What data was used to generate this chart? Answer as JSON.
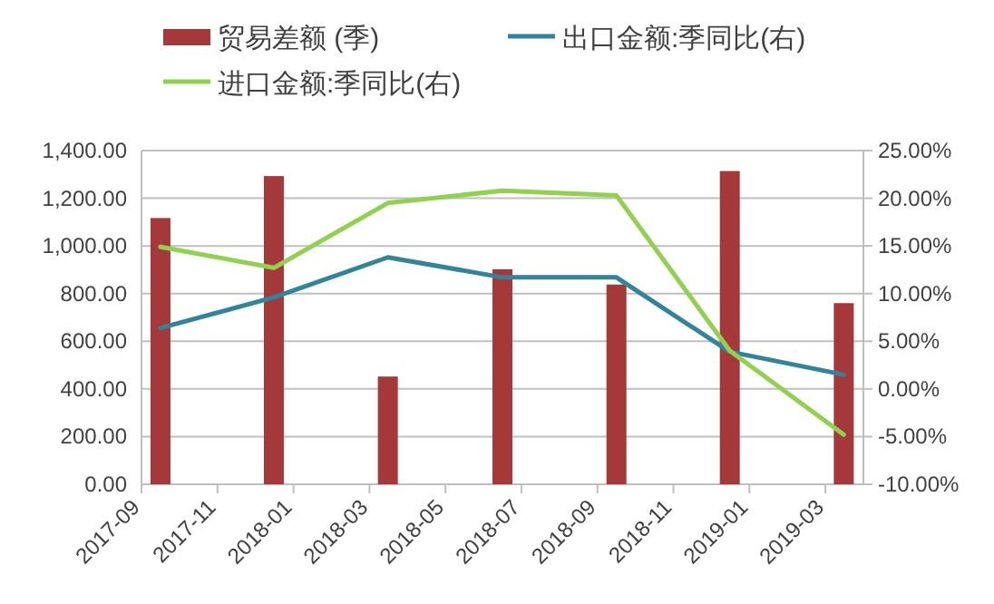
{
  "chart_data": {
    "type": "bar",
    "x": [
      "2017-09-16",
      "2017-12-16",
      "2018-03-16",
      "2018-06-16",
      "2018-09-16",
      "2018-12-16",
      "2019-03-16"
    ],
    "series": [
      {
        "name": "贸易差额 (季)",
        "color": "#a5393a",
        "values": [
          1117,
          1293,
          452,
          902,
          838,
          1314,
          760
        ]
      },
      {
        "name": "出口金额:季同比(右)",
        "type": "line",
        "axis": "y2",
        "color": "#31849b",
        "values": [
          6.4,
          9.6,
          13.8,
          11.7,
          11.7,
          3.9,
          1.5
        ]
      },
      {
        "name": "进口金额:季同比(右)",
        "type": "line",
        "axis": "y2",
        "color": "#92d050",
        "values": [
          14.9,
          12.7,
          19.5,
          20.8,
          20.3,
          4.0,
          -4.8
        ]
      }
    ],
    "xlim": [
      "2017-09-01",
      "2019-04-01"
    ],
    "xticks": [
      {
        "value": "2017-09-01",
        "label": "2017-09"
      },
      {
        "value": "2017-11-01",
        "label": "2017-11"
      },
      {
        "value": "2018-01-01",
        "label": "2018-01"
      },
      {
        "value": "2018-03-01",
        "label": "2018-03"
      },
      {
        "value": "2018-05-01",
        "label": "2018-05"
      },
      {
        "value": "2018-07-01",
        "label": "2018-07"
      },
      {
        "value": "2018-09-01",
        "label": "2018-09"
      },
      {
        "value": "2018-11-01",
        "label": "2018-11"
      },
      {
        "value": "2019-01-01",
        "label": "2019-01"
      },
      {
        "value": "2019-03-01",
        "label": "2019-03"
      }
    ],
    "ylim": [
      0,
      1400
    ],
    "yticks": [
      {
        "value": 0,
        "label": "0.00"
      },
      {
        "value": 200,
        "label": "200.00"
      },
      {
        "value": 400,
        "label": "400.00"
      },
      {
        "value": 600,
        "label": "600.00"
      },
      {
        "value": 800,
        "label": "800.00"
      },
      {
        "value": 1000,
        "label": "1,000.00"
      },
      {
        "value": 1200,
        "label": "1,200.00"
      },
      {
        "value": 1400,
        "label": "1,400.00"
      }
    ],
    "y2lim": [
      -10,
      25
    ],
    "y2ticks": [
      {
        "value": -10,
        "label": "-10.00%"
      },
      {
        "value": -5,
        "label": "-5.00%"
      },
      {
        "value": 0,
        "label": "0.00%"
      },
      {
        "value": 5,
        "label": "5.00%"
      },
      {
        "value": 10,
        "label": "10.00%"
      },
      {
        "value": 15,
        "label": "15.00%"
      },
      {
        "value": 20,
        "label": "20.00%"
      },
      {
        "value": 25,
        "label": "25.00%"
      }
    ],
    "grid": "y",
    "legend": "top",
    "marker": "none",
    "line_style": "solid"
  }
}
